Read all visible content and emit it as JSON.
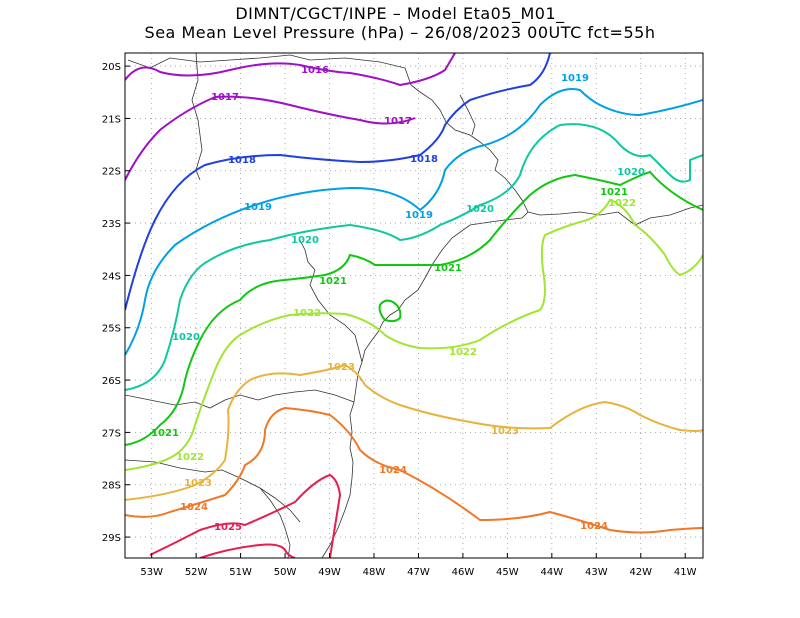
{
  "title": {
    "line1": "DIMNT/CGCT/INPE –  Model Eta05_M01_",
    "line2": "Sea Mean Level Pressure (hPa) – 26/08/2023 00UTC fct=55h"
  },
  "axes": {
    "lon_labels": [
      "53W",
      "52W",
      "51W",
      "50W",
      "49W",
      "48W",
      "47W",
      "46W",
      "45W",
      "44W",
      "43W",
      "42W",
      "41W"
    ],
    "lat_labels": [
      "20S",
      "21S",
      "22S",
      "23S",
      "24S",
      "25S",
      "26S",
      "27S",
      "28S",
      "29S"
    ]
  },
  "chart_data": {
    "type": "contour-map",
    "title": "Sea Mean Level Pressure (hPa) – 26/08/2023 00UTC fct=55h",
    "variable": "Sea Mean Level Pressure",
    "units": "hPa",
    "model": "Eta05_M01_",
    "forecast_hour": 55,
    "lon_range": [
      -53.6,
      -40.6
    ],
    "lat_range": [
      -29.4,
      -19.75
    ],
    "contours": [
      {
        "level": "1016",
        "color": "#a010c8"
      },
      {
        "level": "1017",
        "color": "#a010c8"
      },
      {
        "level": "1018",
        "color": "#2040e0"
      },
      {
        "level": "1019",
        "color": "#00a0e6"
      },
      {
        "level": "1020",
        "color": "#10c8a0"
      },
      {
        "level": "1021",
        "color": "#10c810"
      },
      {
        "level": "1022",
        "color": "#a0e632"
      },
      {
        "level": "1023",
        "color": "#e6b43c"
      },
      {
        "level": "1024",
        "color": "#f07828"
      },
      {
        "level": "1025",
        "color": "#e61e50"
      }
    ]
  }
}
